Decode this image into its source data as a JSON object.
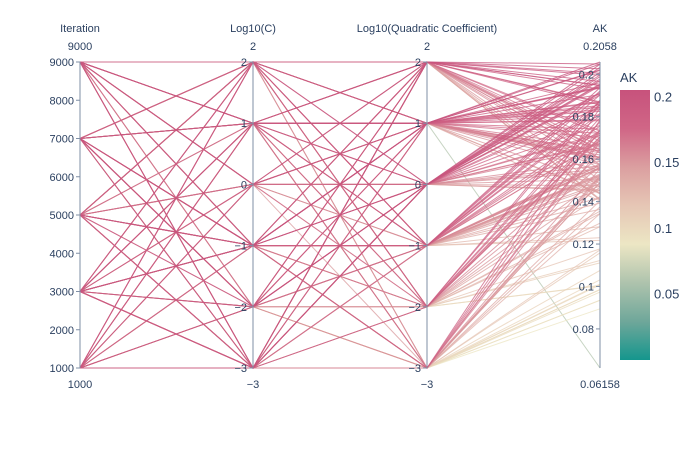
{
  "chart_data": {
    "type": "parallel_coordinates",
    "color_by": "AK",
    "colorscale": [
      [
        0.0,
        "#009B9E"
      ],
      [
        0.17,
        "#42B7B9"
      ],
      [
        0.33,
        "#A7D3D4"
      ],
      [
        0.5,
        "#F1F1F1"
      ],
      [
        0.67,
        "#E4C1D9"
      ],
      [
        0.83,
        "#D691C1"
      ],
      [
        1.0,
        "#C75DAB"
      ]
    ],
    "colorscale_render": [
      "#14968d",
      "#6fa79a",
      "#aec3ad",
      "#ece6c4",
      "#e6c6b5",
      "#db9fa0",
      "#d06686",
      "#c7527c"
    ],
    "colorbar": {
      "title": "AK",
      "range": [
        0.0,
        0.2058
      ],
      "ticks": [
        "0.05",
        "0.1",
        "0.15",
        "0.2"
      ],
      "tick_values": [
        0.05,
        0.1,
        0.15,
        0.2
      ]
    },
    "dimensions": [
      {
        "label": "Iteration",
        "range": [
          1000,
          9000
        ],
        "range_labels": [
          "9000",
          "1000"
        ],
        "tick_values": [
          1000,
          2000,
          3000,
          4000,
          5000,
          6000,
          7000,
          8000,
          9000
        ],
        "tick_text": [
          "1000",
          "2000",
          "3000",
          "4000",
          "5000",
          "6000",
          "7000",
          "8000",
          "9000"
        ],
        "category_values": [
          1000,
          3000,
          5000,
          7000,
          9000
        ]
      },
      {
        "label": "Log10(C)",
        "range": [
          -3,
          2
        ],
        "range_labels": [
          "2",
          "−3"
        ],
        "tick_values": [
          -3,
          -2,
          -1,
          0,
          1,
          2
        ],
        "tick_text": [
          "−3",
          "−2",
          "−1",
          "0",
          "1",
          "2"
        ],
        "category_values": [
          -3,
          -2,
          -1,
          0,
          1,
          2
        ]
      },
      {
        "label": "Log10(Quadratic Coefficient)",
        "range": [
          -3,
          2
        ],
        "range_labels": [
          "2",
          "−3"
        ],
        "tick_values": [
          -3,
          -2,
          -1,
          0,
          1,
          2
        ],
        "tick_text": [
          "−3",
          "−2",
          "−1",
          "0",
          "1",
          "2"
        ],
        "category_values": [
          -3,
          -2,
          -1,
          0,
          1,
          2
        ]
      },
      {
        "label": "AK",
        "range": [
          0.06158,
          0.2058
        ],
        "range_labels": [
          "0.2058",
          "0.06158"
        ],
        "tick_values": [
          0.08,
          0.1,
          0.12,
          0.14,
          0.16,
          0.18,
          0.2
        ],
        "tick_text": [
          "0.08",
          "0.1",
          "0.12",
          "0.14",
          "0.16",
          "0.18",
          "0.2"
        ]
      }
    ],
    "trial_count": 180
  }
}
